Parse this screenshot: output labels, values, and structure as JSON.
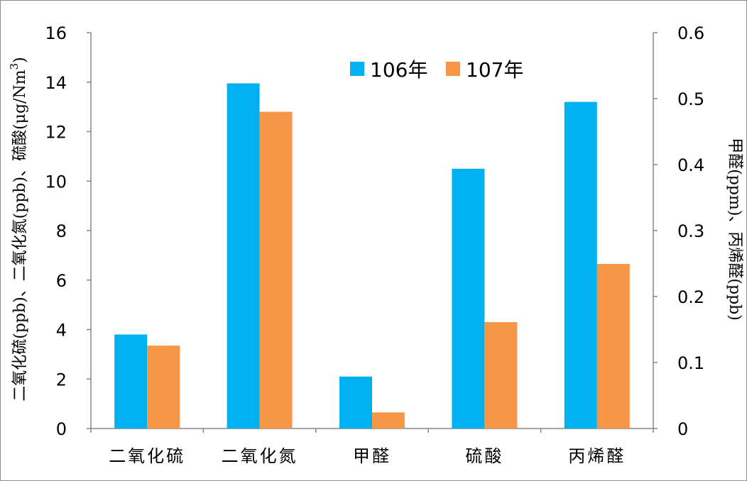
{
  "chart_data": {
    "type": "bar",
    "categories": [
      "二氧化硫",
      "二氧化氮",
      "甲醛",
      "硫酸",
      "丙烯醛"
    ],
    "series": [
      {
        "name": "106年",
        "color": "#00b0f0",
        "values": [
          3.8,
          13.95,
          2.1,
          10.5,
          13.2
        ]
      },
      {
        "name": "107年",
        "color": "#f79646",
        "values": [
          3.35,
          12.8,
          0.65,
          4.3,
          6.65
        ]
      }
    ],
    "ylabel_left": "二氧化硫(ppb)、二氧化氮(ppb)、硫酸(μg/Nm",
    "ylabel_left_sup": "3",
    "ylabel_left_end": ")",
    "ylabel_right": "甲醛(ppm)、丙烯醛(ppb)",
    "ylim_left": [
      0,
      16
    ],
    "ylim_right": [
      0,
      0.6
    ],
    "yticks_left": [
      "0",
      "2",
      "4",
      "6",
      "8",
      "10",
      "12",
      "14",
      "16"
    ],
    "yticks_right": [
      "0",
      "0.1",
      "0.2",
      "0.3",
      "0.4",
      "0.5",
      "0.6"
    ],
    "grid": false,
    "legend_position": "top-center"
  }
}
